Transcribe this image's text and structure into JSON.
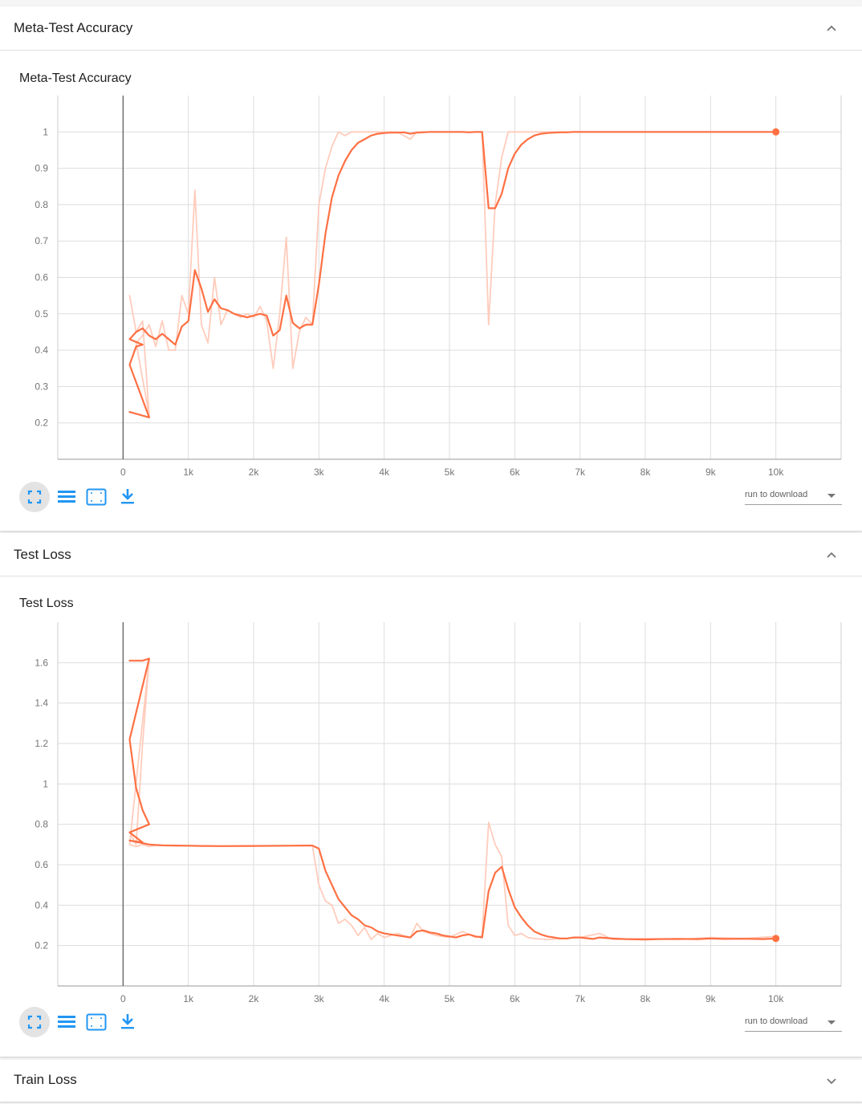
{
  "sections": [
    {
      "title": "Meta-Test Accuracy",
      "expanded": true
    },
    {
      "title": "Test Loss",
      "expanded": true
    },
    {
      "title": "Train Loss",
      "expanded": false
    }
  ],
  "colors": {
    "line": "#ff7043",
    "raw_line": "#ffccbc",
    "grid": "#dddddd",
    "accent": "#2196f3"
  },
  "toolbar_icons": [
    "fullscreen-icon",
    "list-icon",
    "fit-domain-icon",
    "download-icon"
  ],
  "run_select_label": "run to download",
  "chart_data": [
    {
      "type": "line",
      "title": "Meta-Test Accuracy",
      "xlim": [
        -1000,
        11000
      ],
      "ylim": [
        0.1,
        1.1
      ],
      "xticks": [
        0,
        1000,
        2000,
        3000,
        4000,
        5000,
        6000,
        7000,
        8000,
        9000,
        10000
      ],
      "xtick_labels": [
        "0",
        "1k",
        "2k",
        "3k",
        "4k",
        "5k",
        "6k",
        "7k",
        "8k",
        "9k",
        "10k"
      ],
      "yticks": [
        0.2,
        0.3,
        0.4,
        0.5,
        0.6,
        0.7,
        0.8,
        0.9,
        1
      ],
      "ytick_labels": [
        "0.2",
        "0.3",
        "0.4",
        "0.5",
        "0.6",
        "0.7",
        "0.8",
        "0.9",
        "1"
      ],
      "grid": true,
      "series": [
        {
          "smoothed": true,
          "x": [
            100,
            400,
            100,
            200,
            300,
            100,
            200,
            300,
            400,
            500,
            600,
            700,
            800,
            900,
            1000,
            1100,
            1200,
            1300,
            1400,
            1500,
            1600,
            1700,
            1800,
            1900,
            2000,
            2100,
            2200,
            2300,
            2400,
            2500,
            2600,
            2700,
            2800,
            2900,
            3000,
            3100,
            3200,
            3300,
            3400,
            3500,
            3600,
            3700,
            3800,
            3900,
            4000,
            4100,
            4200,
            4300,
            4400,
            4500,
            4600,
            4700,
            4800,
            4900,
            5000,
            5100,
            5200,
            5300,
            5400,
            5500,
            5600,
            5700,
            5800,
            5900,
            6000,
            6100,
            6200,
            6300,
            6400,
            6500,
            6600,
            6700,
            6800,
            6900,
            7000,
            7500,
            8000,
            8500,
            9000,
            9500,
            10000
          ],
          "y": [
            0.23,
            0.215,
            0.36,
            0.41,
            0.415,
            0.43,
            0.45,
            0.46,
            0.44,
            0.43,
            0.445,
            0.43,
            0.415,
            0.465,
            0.48,
            0.62,
            0.57,
            0.505,
            0.54,
            0.515,
            0.51,
            0.5,
            0.495,
            0.49,
            0.495,
            0.5,
            0.495,
            0.44,
            0.455,
            0.55,
            0.475,
            0.46,
            0.47,
            0.47,
            0.58,
            0.72,
            0.82,
            0.88,
            0.92,
            0.95,
            0.97,
            0.98,
            0.99,
            0.995,
            0.997,
            0.998,
            0.998,
            0.999,
            0.995,
            0.998,
            0.999,
            1.0,
            1.0,
            1.0,
            1.0,
            1.0,
            1.0,
            0.999,
            1.0,
            1.0,
            0.79,
            0.79,
            0.83,
            0.9,
            0.94,
            0.965,
            0.98,
            0.99,
            0.995,
            0.997,
            0.998,
            0.999,
            0.999,
            1.0,
            1.0,
            1.0,
            1.0,
            1.0,
            1.0,
            1.0,
            1.0
          ]
        },
        {
          "smoothed": false,
          "x": [
            100,
            200,
            300,
            400,
            200,
            300,
            400,
            500,
            600,
            700,
            800,
            900,
            1000,
            1100,
            1200,
            1300,
            1400,
            1500,
            1600,
            1700,
            1800,
            1900,
            2000,
            2100,
            2200,
            2300,
            2400,
            2500,
            2600,
            2700,
            2800,
            2900,
            3000,
            3100,
            3200,
            3300,
            3400,
            3500,
            3600,
            3700,
            3800,
            3900,
            4000,
            4100,
            4200,
            4300,
            4400,
            4500,
            4600,
            4700,
            4800,
            4900,
            5000,
            5100,
            5200,
            5300,
            5400,
            5500,
            5600,
            5700,
            5800,
            5900,
            6000,
            6500,
            7000,
            7500,
            8000,
            8500,
            9000,
            9500,
            10000
          ],
          "y": [
            0.55,
            0.45,
            0.48,
            0.22,
            0.42,
            0.44,
            0.47,
            0.41,
            0.48,
            0.4,
            0.4,
            0.55,
            0.5,
            0.84,
            0.47,
            0.42,
            0.6,
            0.47,
            0.51,
            0.5,
            0.49,
            0.5,
            0.49,
            0.52,
            0.48,
            0.35,
            0.5,
            0.71,
            0.35,
            0.45,
            0.49,
            0.47,
            0.8,
            0.9,
            0.96,
            1.0,
            0.99,
            1.0,
            1.0,
            1.0,
            1.0,
            1.0,
            1.0,
            1.0,
            1.0,
            0.99,
            0.98,
            1.0,
            1.0,
            1.0,
            1.0,
            1.0,
            1.0,
            1.0,
            1.0,
            1.0,
            1.0,
            1.0,
            0.47,
            0.8,
            0.93,
            1.0,
            1.0,
            1.0,
            1.0,
            1.0,
            1.0,
            1.0,
            1.0,
            1.0,
            1.0
          ]
        }
      ],
      "last_point": {
        "x": 10000,
        "y": 1.0
      }
    },
    {
      "type": "line",
      "title": "Test Loss",
      "xlim": [
        -1000,
        11000
      ],
      "ylim": [
        0,
        1.8
      ],
      "xticks": [
        0,
        1000,
        2000,
        3000,
        4000,
        5000,
        6000,
        7000,
        8000,
        9000,
        10000
      ],
      "xtick_labels": [
        "0",
        "1k",
        "2k",
        "3k",
        "4k",
        "5k",
        "6k",
        "7k",
        "8k",
        "9k",
        "10k"
      ],
      "yticks": [
        0.2,
        0.4,
        0.6,
        0.8,
        1,
        1.2,
        1.4,
        1.6
      ],
      "ytick_labels": [
        "0.2",
        "0.4",
        "0.6",
        "0.8",
        "1",
        "1.2",
        "1.4",
        "1.6"
      ],
      "grid": true,
      "series": [
        {
          "smoothed": true,
          "x": [
            100,
            300,
            400,
            100,
            200,
            300,
            400,
            100,
            300,
            100,
            400,
            500,
            600,
            800,
            1000,
            1200,
            1500,
            2000,
            2500,
            2900,
            3000,
            3100,
            3200,
            3300,
            3400,
            3500,
            3600,
            3700,
            3800,
            3900,
            4000,
            4200,
            4300,
            4400,
            4500,
            4600,
            4700,
            4800,
            4900,
            5000,
            5100,
            5200,
            5300,
            5400,
            5500,
            5600,
            5700,
            5800,
            5900,
            6000,
            6100,
            6200,
            6300,
            6400,
            6500,
            6600,
            6700,
            6800,
            6900,
            7000,
            7200,
            7300,
            7500,
            7700,
            8000,
            8200,
            8500,
            8800,
            9000,
            9200,
            9500,
            9800,
            10000
          ],
          "y": [
            1.61,
            1.61,
            1.62,
            1.22,
            0.98,
            0.87,
            0.8,
            0.76,
            0.71,
            0.72,
            0.7,
            0.698,
            0.696,
            0.695,
            0.694,
            0.693,
            0.692,
            0.693,
            0.694,
            0.695,
            0.68,
            0.57,
            0.5,
            0.43,
            0.39,
            0.35,
            0.33,
            0.3,
            0.29,
            0.27,
            0.26,
            0.25,
            0.245,
            0.24,
            0.27,
            0.275,
            0.265,
            0.26,
            0.25,
            0.245,
            0.24,
            0.25,
            0.255,
            0.245,
            0.24,
            0.47,
            0.56,
            0.59,
            0.48,
            0.39,
            0.34,
            0.3,
            0.27,
            0.255,
            0.245,
            0.24,
            0.235,
            0.235,
            0.24,
            0.24,
            0.233,
            0.24,
            0.235,
            0.232,
            0.23,
            0.232,
            0.233,
            0.232,
            0.235,
            0.233,
            0.234,
            0.232,
            0.235
          ]
        },
        {
          "smoothed": false,
          "x": [
            100,
            200,
            300,
            400,
            100,
            200,
            300,
            400,
            500,
            1000,
            2000,
            2900,
            3000,
            3100,
            3200,
            3300,
            3400,
            3500,
            3600,
            3700,
            3800,
            3900,
            4000,
            4200,
            4400,
            4500,
            4600,
            4800,
            5000,
            5200,
            5400,
            5500,
            5600,
            5700,
            5800,
            5900,
            6000,
            6100,
            6200,
            6300,
            6500,
            7000,
            7300,
            7500,
            8000,
            8500,
            9000,
            9500,
            10000
          ],
          "y": [
            0.76,
            0.7,
            1.2,
            1.62,
            0.7,
            0.69,
            0.7,
            0.69,
            0.695,
            0.693,
            0.693,
            0.695,
            0.5,
            0.42,
            0.4,
            0.31,
            0.33,
            0.3,
            0.25,
            0.29,
            0.23,
            0.26,
            0.24,
            0.26,
            0.24,
            0.31,
            0.27,
            0.25,
            0.24,
            0.27,
            0.24,
            0.25,
            0.81,
            0.7,
            0.64,
            0.3,
            0.25,
            0.26,
            0.24,
            0.235,
            0.23,
            0.24,
            0.26,
            0.23,
            0.235,
            0.23,
            0.24,
            0.235,
            0.245
          ]
        }
      ],
      "last_point": {
        "x": 10000,
        "y": 0.235
      }
    }
  ]
}
